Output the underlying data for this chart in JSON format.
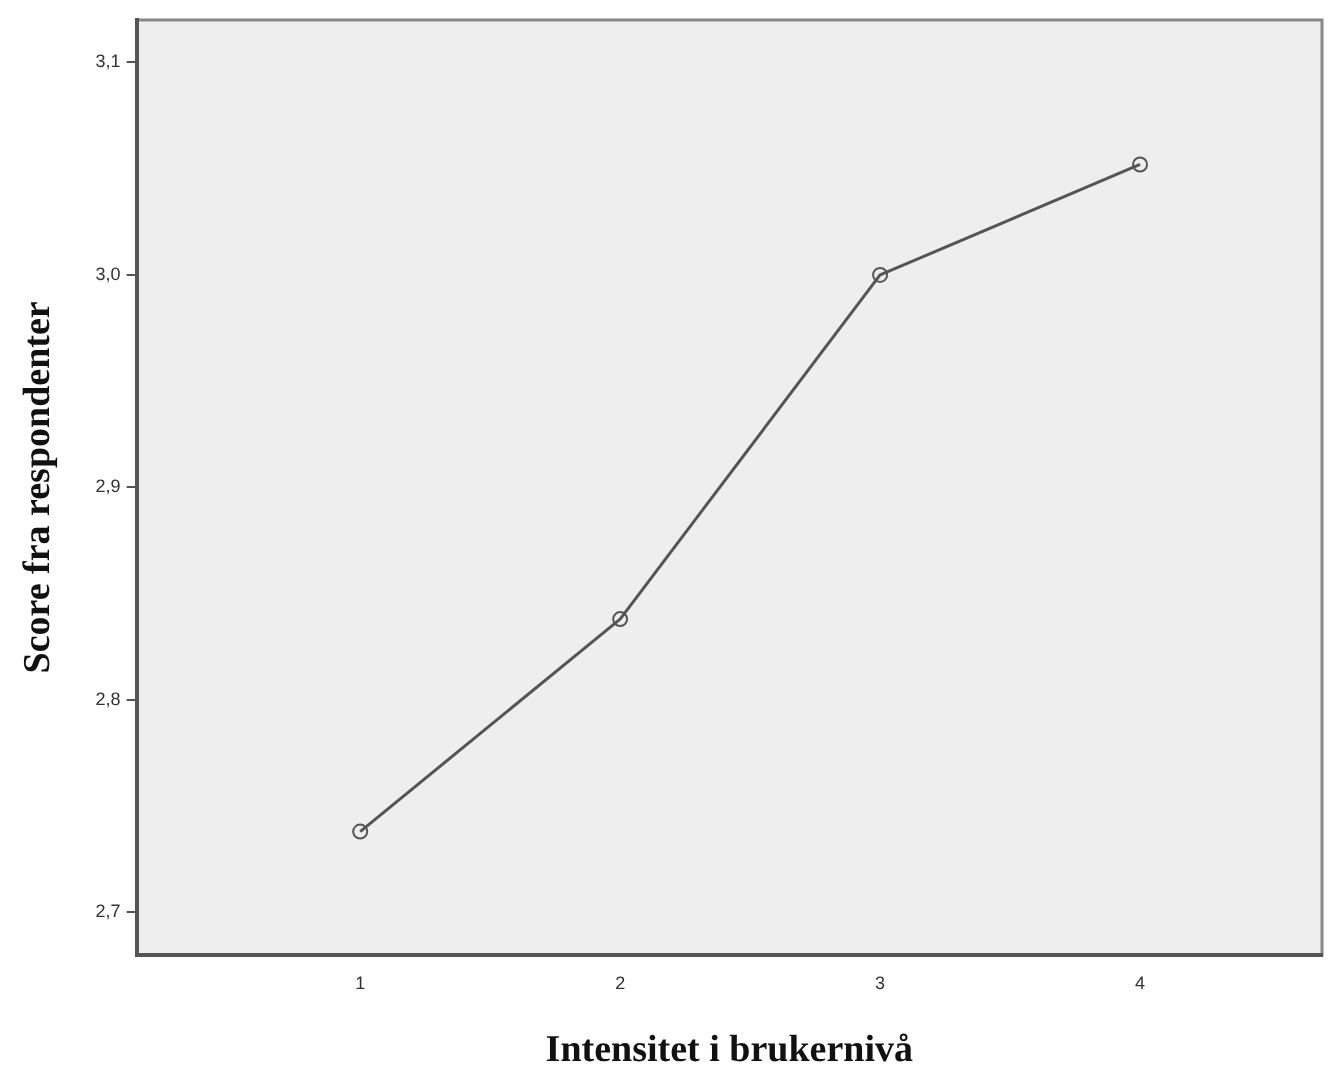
{
  "chart_data": {
    "type": "line",
    "xlabel": "Intensitet i brukernivå",
    "ylabel": "Score fra respondenter",
    "x": [
      1,
      2,
      3,
      4
    ],
    "series": [
      {
        "color": "#555555",
        "values": [
          2.738,
          2.838,
          3.0,
          3.052
        ]
      }
    ],
    "xlim": [
      0.14,
      4.7
    ],
    "xticks": [
      1,
      2,
      3,
      4
    ],
    "ylim": [
      2.68,
      3.12
    ],
    "yticks": [
      {
        "value": 2.7,
        "label": "2,7"
      },
      {
        "value": 2.8,
        "label": "2,8"
      },
      {
        "value": 2.9,
        "label": "2,9"
      },
      {
        "value": 3.0,
        "label": "3,0"
      },
      {
        "value": 3.1,
        "label": "3,1"
      }
    ],
    "grid": false,
    "legend": false,
    "marker": "circle",
    "line_style": "solid"
  }
}
